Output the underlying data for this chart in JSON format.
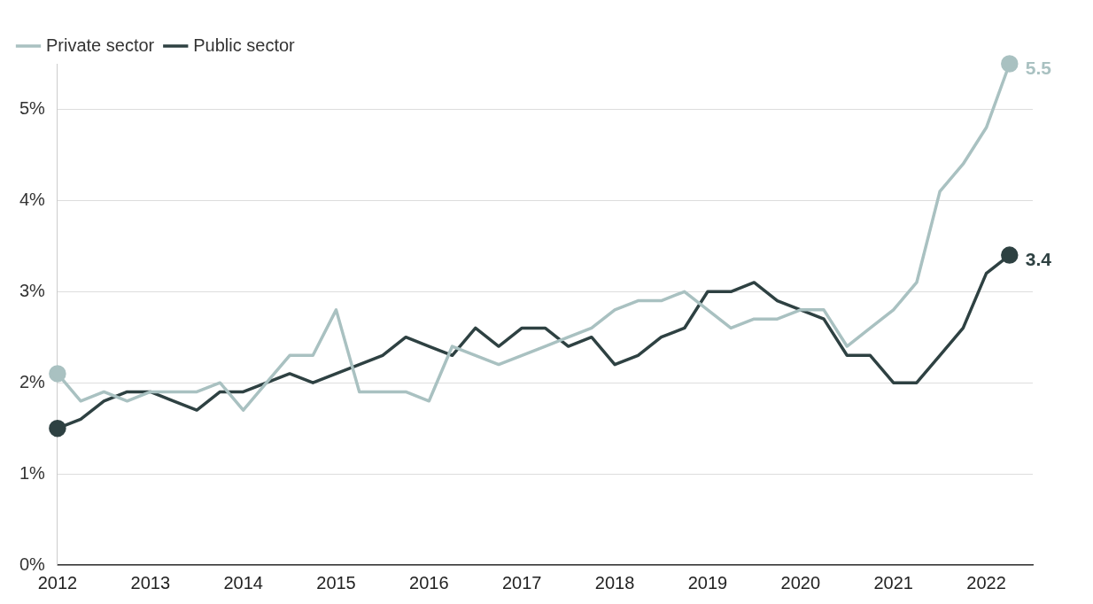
{
  "chart_data": {
    "type": "line",
    "x": [
      2012,
      2012.25,
      2012.5,
      2012.75,
      2013,
      2013.25,
      2013.5,
      2013.75,
      2014,
      2014.25,
      2014.5,
      2014.75,
      2015,
      2015.25,
      2015.5,
      2015.75,
      2016,
      2016.25,
      2016.5,
      2016.75,
      2017,
      2017.25,
      2017.5,
      2017.75,
      2018,
      2018.25,
      2018.5,
      2018.75,
      2019,
      2019.25,
      2019.5,
      2019.75,
      2020,
      2020.25,
      2020.5,
      2020.75,
      2021,
      2021.25,
      2021.5,
      2021.75,
      2022,
      2022.25
    ],
    "series": [
      {
        "name": "Private sector",
        "color": "#a9c1c1",
        "values": [
          2.1,
          1.8,
          1.9,
          1.8,
          1.9,
          1.9,
          1.9,
          2.0,
          1.7,
          2.0,
          2.3,
          2.3,
          2.8,
          1.9,
          1.9,
          1.9,
          1.8,
          2.4,
          2.3,
          2.2,
          2.3,
          2.4,
          2.5,
          2.6,
          2.8,
          2.9,
          2.9,
          3.0,
          2.8,
          2.6,
          2.7,
          2.7,
          2.8,
          2.8,
          2.4,
          2.6,
          2.8,
          3.1,
          4.1,
          4.4,
          4.8,
          5.5
        ],
        "value_labels": [
          null,
          null,
          null,
          null,
          null,
          null,
          null,
          null,
          null,
          null,
          null,
          null,
          null,
          null,
          null,
          null,
          null,
          null,
          null,
          null,
          null,
          null,
          null,
          null,
          null,
          null,
          null,
          null,
          null,
          null,
          null,
          null,
          null,
          null,
          null,
          null,
          null,
          null,
          null,
          null,
          null,
          "5.5"
        ]
      },
      {
        "name": "Public sector",
        "color": "#2e4142",
        "values": [
          1.5,
          1.6,
          1.8,
          1.9,
          1.9,
          1.8,
          1.7,
          1.9,
          1.9,
          2.0,
          2.1,
          2.0,
          2.1,
          2.2,
          2.3,
          2.5,
          2.4,
          2.3,
          2.6,
          2.4,
          2.6,
          2.6,
          2.4,
          2.5,
          2.2,
          2.3,
          2.5,
          2.6,
          3.0,
          3.0,
          3.1,
          2.9,
          2.8,
          2.7,
          2.3,
          2.3,
          2.0,
          2.0,
          2.3,
          2.6,
          3.2,
          3.4
        ],
        "value_labels": [
          null,
          null,
          null,
          null,
          null,
          null,
          null,
          null,
          null,
          null,
          null,
          null,
          null,
          null,
          null,
          null,
          null,
          null,
          null,
          null,
          null,
          null,
          null,
          null,
          null,
          null,
          null,
          null,
          null,
          null,
          null,
          null,
          null,
          null,
          null,
          null,
          null,
          null,
          null,
          null,
          null,
          "3.4"
        ]
      }
    ],
    "xlim": [
      2012,
      2022.5
    ],
    "xticks": [
      2012,
      2013,
      2014,
      2015,
      2016,
      2017,
      2018,
      2019,
      2020,
      2021,
      2022
    ],
    "ylim": [
      0,
      5.5
    ],
    "yticks": [
      {
        "value": 0,
        "label": "0%"
      },
      {
        "value": 1,
        "label": "1%"
      },
      {
        "value": 2,
        "label": "2%"
      },
      {
        "value": 3,
        "label": "3%"
      },
      {
        "value": 4,
        "label": "4%"
      },
      {
        "value": 5,
        "label": "5%"
      }
    ],
    "grid": "y",
    "legend": "top left",
    "line_style": "solid"
  }
}
